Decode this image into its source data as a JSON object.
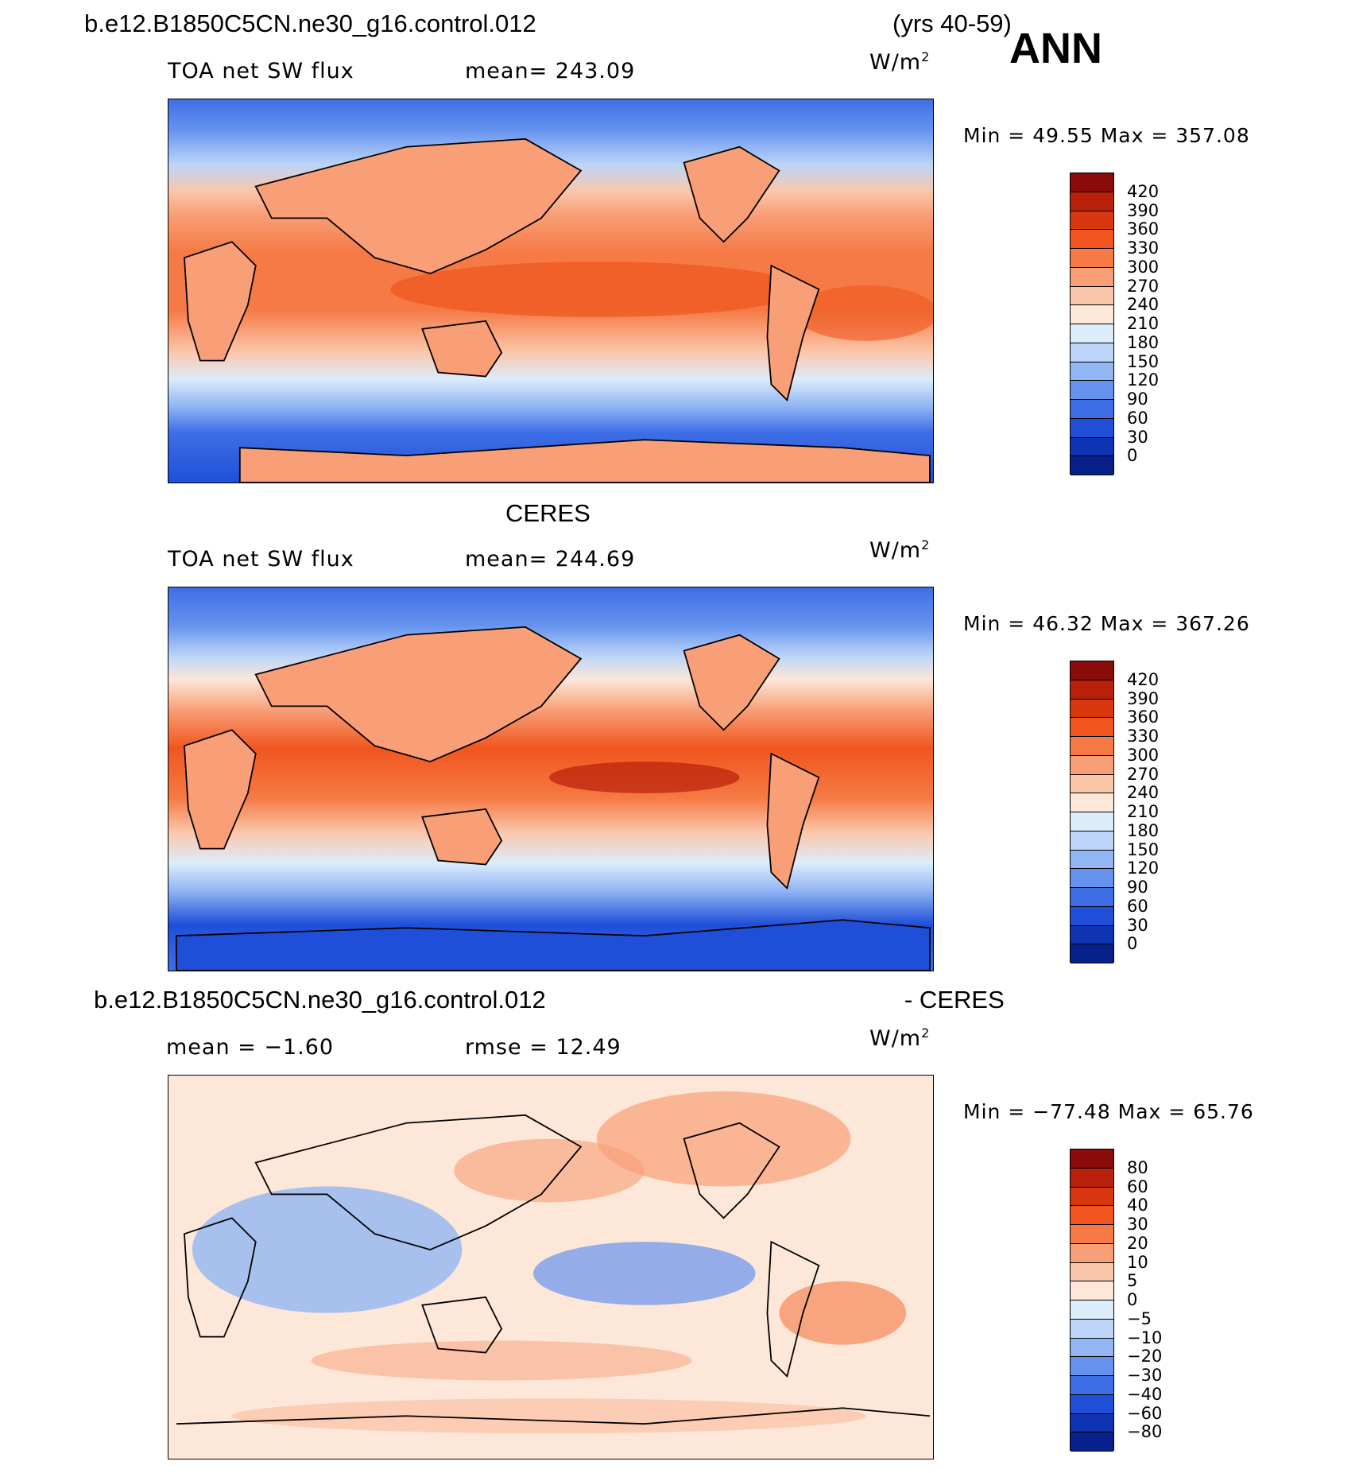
{
  "header": {
    "case_name": "b.e12.B1850C5CN.ne30_g16.control.012",
    "years": "(yrs 40-59)",
    "season": "ANN"
  },
  "panels": [
    {
      "id": "model",
      "title": "",
      "left_label": "TOA net SW flux",
      "center_label": "mean= 243.09",
      "unit": "W/m",
      "unit_sup": "2",
      "minmax": "Min =   49.55 Max = 357.08",
      "colorbar_labels": [
        "420",
        "390",
        "360",
        "330",
        "300",
        "270",
        "240",
        "210",
        "180",
        "150",
        "120",
        "90",
        "60",
        "30",
        "0"
      ],
      "colorbar_colors": [
        "#8b0a0a",
        "#b8200a",
        "#d9370f",
        "#f0561e",
        "#f57a45",
        "#f89f77",
        "#fbc7ab",
        "#fde7d8",
        "#dcecfb",
        "#bcd5f8",
        "#92b6f4",
        "#6693ee",
        "#3e6ee6",
        "#1f4fd8",
        "#0f34b3",
        "#08208a"
      ]
    },
    {
      "id": "obs",
      "title": "CERES",
      "left_label": "TOA net SW flux",
      "center_label": "mean= 244.69",
      "unit": "W/m",
      "unit_sup": "2",
      "minmax": "Min =   46.32 Max = 367.26",
      "colorbar_labels": [
        "420",
        "390",
        "360",
        "330",
        "300",
        "270",
        "240",
        "210",
        "180",
        "150",
        "120",
        "90",
        "60",
        "30",
        "0"
      ],
      "colorbar_colors": [
        "#8b0a0a",
        "#b8200a",
        "#d9370f",
        "#f0561e",
        "#f57a45",
        "#f89f77",
        "#fbc7ab",
        "#fde7d8",
        "#dcecfb",
        "#bcd5f8",
        "#92b6f4",
        "#6693ee",
        "#3e6ee6",
        "#1f4fd8",
        "#0f34b3",
        "#08208a"
      ]
    },
    {
      "id": "diff",
      "title": "b.e12.B1850C5CN.ne30_g16.control.012",
      "title_right": "- CERES",
      "left_label": "mean =   −1.60",
      "center_label": "rmse =   12.49",
      "unit": "W/m",
      "unit_sup": "2",
      "minmax": "Min = −77.48 Max =   65.76",
      "colorbar_labels": [
        "80",
        "60",
        "40",
        "30",
        "20",
        "10",
        "5",
        "0",
        "−5",
        "−10",
        "−20",
        "−30",
        "−40",
        "−60",
        "−80"
      ],
      "colorbar_colors": [
        "#8b0a0a",
        "#b8200a",
        "#d9370f",
        "#f0561e",
        "#f57a45",
        "#f89f77",
        "#fbc7ab",
        "#fde7d8",
        "#dcecfb",
        "#bcd5f8",
        "#92b6f4",
        "#6693ee",
        "#3e6ee6",
        "#1f4fd8",
        "#0f34b3",
        "#08208a"
      ]
    }
  ]
}
